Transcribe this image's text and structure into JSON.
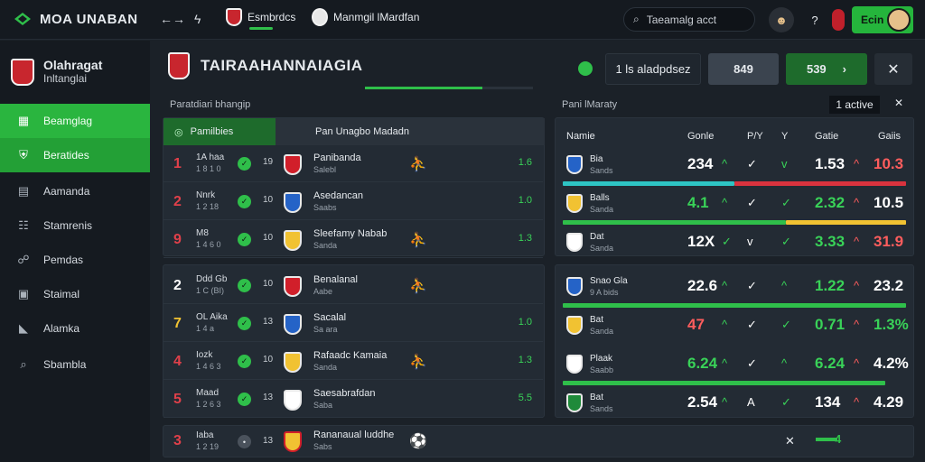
{
  "topbar": {
    "brand": "MOA UNABAN",
    "tab1_label": "Esmbrdcs",
    "tab2_label": "Manmgil lMardfan",
    "search_text": "Taeamalg acct",
    "accent": "#2fbf4a"
  },
  "sidebar": {
    "title": "Olahragat",
    "subtitle": "Inltanglai",
    "items": [
      {
        "label": "Beamglag",
        "icon": "grid-icon"
      },
      {
        "label": "Beratides",
        "icon": "shield-icon"
      },
      {
        "label": "Aamanda",
        "icon": "calendar-icon"
      },
      {
        "label": "Stamrenis",
        "icon": "users-icon"
      },
      {
        "label": "Pemdas",
        "icon": "runner-icon"
      },
      {
        "label": "Staimal",
        "icon": "clipboard-icon"
      },
      {
        "label": "Alamka",
        "icon": "tag-icon"
      },
      {
        "label": "Sbambla",
        "icon": "search-icon"
      }
    ]
  },
  "header": {
    "title": "TAIRAAHANNAIAGIA",
    "progress_pct": 70,
    "filter_label": "1 ls aladpdsez",
    "box2": "849",
    "box3": "539",
    "box3_arrow": "›"
  },
  "sections": {
    "left_label": "Paratdiari bhangip",
    "right_label": "Pani lMaraty",
    "live_label": "1 active"
  },
  "left_panel": {
    "head_tab": "Pamilbies",
    "head_title": "Pan Unagbo Madadn",
    "group1": [
      {
        "rank": "1",
        "score1": "1A haa",
        "score2": "1 8 1 0",
        "num": "19",
        "name": "Panibanda",
        "sub": "Salebl",
        "odds": "1.6",
        "rank_color": "#e0404a"
      },
      {
        "rank": "2",
        "score1": "Nnrk",
        "score2": "1 2 18",
        "num": "10",
        "name": "Asedancan",
        "sub": "Saabs",
        "odds": "1.0",
        "rank_color": "#e0404a"
      },
      {
        "rank": "9",
        "score1": "M8",
        "score2": "1 4 6 0",
        "num": "10",
        "name": "Sleefamy Nabab",
        "sub": "Sanda",
        "odds": "1.3",
        "rank_color": "#e0404a"
      }
    ],
    "group2": [
      {
        "rank": "2",
        "score1": "Ddd Gb",
        "score2": "1 C (BI)",
        "num": "10",
        "name": "Benalanal",
        "sub": "Aabe",
        "odds": "",
        "rank_color": "#ffffff"
      },
      {
        "rank": "7",
        "score1": "OL Aika",
        "score2": "1 4 a",
        "num": "13",
        "name": "Sacalal",
        "sub": "Sa ara",
        "odds": "1.0",
        "rank_color": "#f1c232"
      },
      {
        "rank": "4",
        "score1": "Iozk",
        "score2": "1 4 6 3",
        "num": "10",
        "name": "Rafaadc Kamaia",
        "sub": "Sanda",
        "odds": "1.3",
        "rank_color": "#e0404a"
      },
      {
        "rank": "5",
        "score1": "Maad",
        "score2": "1 2 6 3",
        "num": "13",
        "name": "Saesabrafdan",
        "sub": "Saba",
        "odds": "5.5",
        "rank_color": "#e0404a"
      }
    ],
    "bottom_row": {
      "rank": "3",
      "score1": "Iaba",
      "score2": "1 2 19",
      "num": "13",
      "name": "Rananaual luddhe",
      "sub": "Sabs",
      "x_mark": "✕",
      "odds": "4"
    }
  },
  "right_panel": {
    "columns": [
      "Namie",
      "Gonle",
      "P/Y",
      "Y",
      "Gatie",
      "Gaiis"
    ],
    "group1": [
      {
        "name": "Bia",
        "sub": "Sands",
        "v1": "234",
        "m1": "^",
        "m2": "✓",
        "m3": "v",
        "v2": "1.53",
        "m4": "^",
        "v3": "10.3",
        "v1_color": "#ffffff",
        "v2_color": "#ffffff",
        "v3_color": "#ff5d5d",
        "bar": {
          "green": 0.5,
          "red": 0.5
        }
      },
      {
        "name": "Balls",
        "sub": "Sanda",
        "v1": "4.1",
        "m1": "^",
        "m2": "✓",
        "m3": "✓",
        "v2": "2.32",
        "m4": "^",
        "v3": "10.5",
        "v1_color": "#39d258",
        "v2_color": "#39d258",
        "v3_color": "#ffffff",
        "bar": {
          "green": 0.65,
          "red": 0.35
        }
      },
      {
        "name": "Dat",
        "sub": "Sanda",
        "v1": "12X",
        "m1": "✓",
        "m2": "v",
        "m3": "✓",
        "v2": "3.33",
        "m4": "^",
        "v3": "31.9",
        "v1_color": "#ffffff",
        "v2_color": "#39d258",
        "v3_color": "#ff5d5d",
        "bar": {
          "green": 0,
          "red": 0
        }
      }
    ],
    "group2": [
      {
        "name": "Snao Gla",
        "sub": "9 A bids",
        "v1": "22.6",
        "m1": "^",
        "m2": "✓",
        "m3": "^",
        "v2": "1.22",
        "m4": "^",
        "v3": "23.2",
        "v1_color": "#ffffff",
        "v2_color": "#39d258",
        "v3_color": "#ffffff",
        "bar": {
          "green": 1,
          "red": 0
        }
      },
      {
        "name": "Bat",
        "sub": "Sanda",
        "v1": "47",
        "m1": "^",
        "m2": "✓",
        "m3": "✓",
        "v2": "0.71",
        "m4": "^",
        "v3": "1.3%",
        "v1_color": "#ff5d5d",
        "v2_color": "#39d258",
        "v3_color": "#39d258",
        "bar": {
          "green": 0,
          "red": 0
        }
      },
      {
        "name": "Plaak",
        "sub": "Saabb",
        "v1": "6.24",
        "m1": "^",
        "m2": "✓",
        "m3": "^",
        "v2": "6.24",
        "m4": "^",
        "v3": "4.2%",
        "v1_color": "#39d258",
        "v2_color": "#39d258",
        "v3_color": "#ffffff",
        "bar": {
          "green": 0.94,
          "red": 0
        }
      },
      {
        "name": "Bat",
        "sub": "Sands",
        "v1": "2.54",
        "m1": "^",
        "m2": "A",
        "m3": "✓",
        "v2": "134",
        "m4": "^",
        "v3": "4.29",
        "v1_color": "#ffffff",
        "v2_color": "#ffffff",
        "v3_color": "#ffffff",
        "bar": {
          "green": 0,
          "red": 0
        }
      }
    ]
  }
}
